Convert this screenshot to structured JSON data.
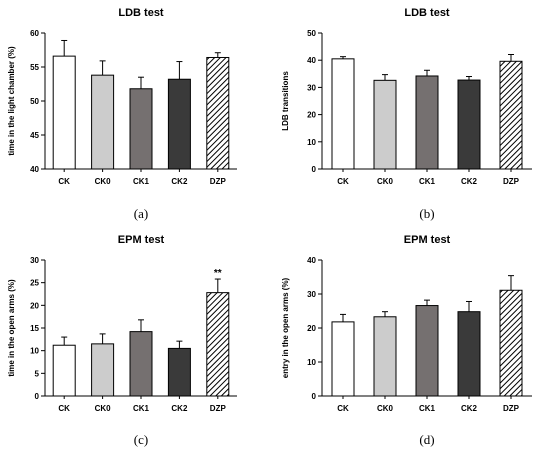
{
  "colors": {
    "CK": "#ffffff",
    "CK0": "#cccccc",
    "CK1": "#757070",
    "CK2": "#3a3a3a",
    "DZP": "hatch"
  },
  "chart_data": [
    {
      "type": "bar",
      "panel": "(a)",
      "title": "LDB test",
      "xlabel": "",
      "ylabel": "time in the light chamber (%)",
      "categories": [
        "CK",
        "CK0",
        "CK1",
        "CK2",
        "DZP"
      ],
      "values": [
        56.6,
        53.8,
        51.8,
        53.2,
        56.4
      ],
      "errors": [
        2.3,
        2.1,
        1.7,
        2.6,
        0.7
      ],
      "annotations": [
        "",
        "",
        "",
        "",
        ""
      ],
      "ylim": [
        40,
        60
      ],
      "yticks": [
        40,
        45,
        50,
        55,
        60
      ]
    },
    {
      "type": "bar",
      "panel": "(b)",
      "title": "LDB test",
      "xlabel": "",
      "ylabel": "LDB transitions",
      "categories": [
        "CK",
        "CK0",
        "CK1",
        "CK2",
        "DZP"
      ],
      "values": [
        40.5,
        32.6,
        34.2,
        32.7,
        39.6
      ],
      "errors": [
        0.8,
        2.1,
        2.1,
        1.3,
        2.5
      ],
      "annotations": [
        "",
        "",
        "",
        "",
        ""
      ],
      "ylim": [
        0,
        50
      ],
      "yticks": [
        0,
        10,
        20,
        30,
        40,
        50
      ]
    },
    {
      "type": "bar",
      "panel": "(c)",
      "title": "EPM test",
      "xlabel": "",
      "ylabel": "time in the open arms (%)",
      "categories": [
        "CK",
        "CK0",
        "CK1",
        "CK2",
        "DZP"
      ],
      "values": [
        11.2,
        11.5,
        14.2,
        10.5,
        22.8
      ],
      "errors": [
        1.8,
        2.2,
        2.6,
        1.6,
        3.0
      ],
      "annotations": [
        "",
        "",
        "",
        "",
        "**"
      ],
      "ylim": [
        0,
        30
      ],
      "yticks": [
        0,
        5,
        10,
        15,
        20,
        25,
        30
      ]
    },
    {
      "type": "bar",
      "panel": "(d)",
      "title": "EPM test",
      "xlabel": "",
      "ylabel": "entry in the open arms (%)",
      "categories": [
        "CK",
        "CK0",
        "CK1",
        "CK2",
        "DZP"
      ],
      "values": [
        21.8,
        23.3,
        26.6,
        24.8,
        31.1
      ],
      "errors": [
        2.2,
        1.5,
        1.6,
        3.0,
        4.3
      ],
      "annotations": [
        "",
        "",
        "",
        "",
        ""
      ],
      "ylim": [
        0,
        40
      ],
      "yticks": [
        0,
        10,
        20,
        30,
        40
      ]
    }
  ]
}
